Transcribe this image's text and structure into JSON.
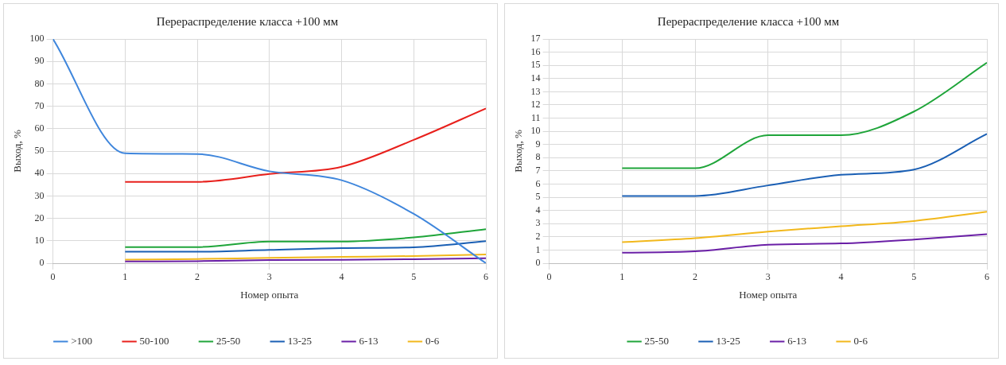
{
  "chart_data": [
    {
      "type": "line",
      "title": "Перераспределение класса +100 мм",
      "xlabel": "Номер опыта",
      "ylabel": "Выход, %",
      "x": [
        0,
        1,
        2,
        3,
        4,
        5,
        6
      ],
      "xlim": [
        0,
        6
      ],
      "xticks": [
        0,
        1,
        2,
        3,
        4,
        5,
        6
      ],
      "ylim": [
        0,
        100
      ],
      "yticks": [
        0,
        10,
        20,
        30,
        40,
        50,
        60,
        70,
        80,
        90,
        100
      ],
      "grid": true,
      "legend": "bottom",
      "marker": "none",
      "series": [
        {
          "name": ">100",
          "color": "#3f86dc",
          "values": [
            100,
            49,
            48.7,
            41,
            37,
            22,
            0
          ]
        },
        {
          "name": "50-100",
          "color": "#e8201c",
          "values": [
            null,
            36.3,
            36.3,
            39.8,
            43,
            55,
            69
          ]
        },
        {
          "name": "25-50",
          "color": "#1fa53a",
          "values": [
            null,
            7.2,
            7.2,
            9.7,
            9.7,
            11.5,
            15.2
          ]
        },
        {
          "name": "13-25",
          "color": "#1a5fb4",
          "values": [
            null,
            5.1,
            5.1,
            5.9,
            6.7,
            7.1,
            9.8
          ]
        },
        {
          "name": "6-13",
          "color": "#6a1fa6",
          "values": [
            null,
            0.8,
            0.9,
            1.4,
            1.5,
            1.8,
            2.2
          ]
        },
        {
          "name": "0-6",
          "color": "#f2b81c",
          "values": [
            null,
            1.6,
            1.9,
            2.4,
            2.8,
            3.2,
            3.9
          ]
        }
      ]
    },
    {
      "type": "line",
      "title": "Перераспределение класса +100 мм",
      "xlabel": "Номер опыта",
      "ylabel": "Выход, %",
      "x": [
        1,
        2,
        3,
        4,
        5,
        6
      ],
      "xlim": [
        0,
        6
      ],
      "xticks": [
        0,
        1,
        2,
        3,
        4,
        5,
        6
      ],
      "ylim": [
        0,
        17
      ],
      "yticks": [
        0,
        1,
        2,
        3,
        4,
        5,
        6,
        7,
        8,
        9,
        10,
        11,
        12,
        13,
        14,
        15,
        16,
        17
      ],
      "grid": true,
      "legend": "bottom",
      "marker": "none",
      "series": [
        {
          "name": "25-50",
          "color": "#1fa53a",
          "values": [
            7.2,
            7.2,
            9.7,
            9.7,
            11.5,
            15.2
          ]
        },
        {
          "name": "13-25",
          "color": "#1a5fb4",
          "values": [
            5.1,
            5.1,
            5.9,
            6.7,
            7.1,
            9.8
          ]
        },
        {
          "name": "6-13",
          "color": "#6a1fa6",
          "values": [
            0.8,
            0.9,
            1.4,
            1.5,
            1.8,
            2.2
          ]
        },
        {
          "name": "0-6",
          "color": "#f2b81c",
          "values": [
            1.6,
            1.9,
            2.4,
            2.8,
            3.2,
            3.9
          ]
        }
      ]
    }
  ]
}
